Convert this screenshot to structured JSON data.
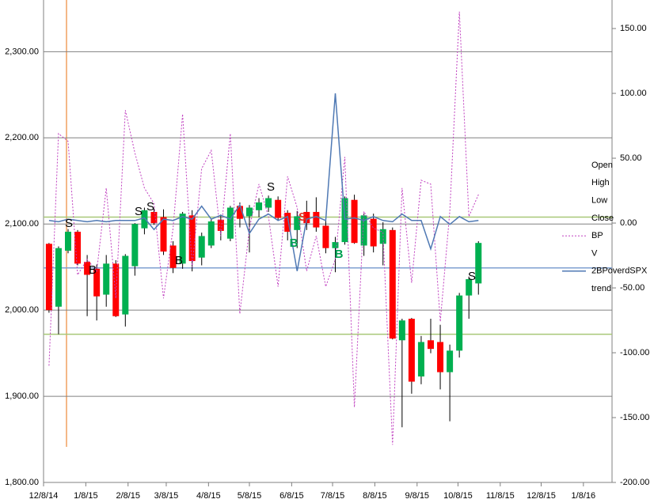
{
  "chart_data": {
    "type": "candlestick",
    "dates": [
      "12/12/14",
      "12/19/14",
      "12/26/14",
      "1/2/15",
      "1/9/15",
      "1/16/15",
      "1/23/15",
      "1/30/15",
      "2/6/15",
      "2/13/15",
      "2/20/15",
      "2/27/15",
      "3/6/15",
      "3/13/15",
      "3/20/15",
      "3/27/15",
      "4/3/15",
      "4/10/15",
      "4/17/15",
      "4/24/15",
      "5/1/15",
      "5/8/15",
      "5/15/15",
      "5/22/15",
      "5/29/15",
      "6/5/15",
      "6/12/15",
      "6/19/15",
      "6/26/15",
      "7/3/15",
      "7/10/15",
      "7/17/15",
      "7/24/15",
      "7/31/15",
      "8/7/15",
      "8/14/15",
      "8/21/15",
      "8/28/15",
      "9/4/15",
      "9/11/15",
      "9/18/15",
      "9/25/15",
      "10/2/15",
      "10/9/15",
      "10/16/15",
      "10/23/15"
    ],
    "open": [
      2077,
      2004,
      2069,
      2091,
      2056,
      2048,
      2018,
      2054,
      1995,
      2051,
      2095,
      2114,
      2108,
      2075,
      2054,
      2110,
      2061,
      2075,
      2105,
      2083,
      2121,
      2109,
      2116,
      2119,
      2128,
      2113,
      2093,
      2114,
      2114,
      2098,
      2072,
      2079,
      2128,
      2075,
      2106,
      2077,
      2093,
      1965,
      1990,
      1923,
      1965,
      1963,
      1928,
      1953,
      2017,
      2031
    ],
    "high": [
      2078,
      2074,
      2094,
      2093,
      2064,
      2053,
      2064,
      2058,
      2065,
      2101,
      2119,
      2118,
      2117,
      2080,
      2114,
      2116,
      2090,
      2106,
      2111,
      2121,
      2125,
      2122,
      2130,
      2133,
      2132,
      2116,
      2115,
      2127,
      2131,
      2105,
      2085,
      2132,
      2134,
      2112,
      2112,
      2102,
      2096,
      1990,
      1991,
      1970,
      1990,
      1983,
      1960,
      2020,
      2039,
      2080
    ],
    "low": [
      1997,
      1972,
      2066,
      2052,
      1993,
      1988,
      2004,
      1992,
      1981,
      2040,
      2088,
      2099,
      2064,
      2043,
      2048,
      2045,
      2052,
      2072,
      2081,
      2080,
      2096,
      2067,
      2108,
      2114,
      2104,
      2081,
      2072,
      2093,
      2091,
      2066,
      2044,
      2076,
      2077,
      2063,
      2067,
      2052,
      1966,
      1864,
      1903,
      1914,
      1950,
      1908,
      1871,
      1945,
      1990,
      2018
    ],
    "close": [
      2000,
      2072,
      2091,
      2054,
      2041,
      2016,
      2054,
      1993,
      2063,
      2100,
      2116,
      2101,
      2068,
      2049,
      2112,
      2057,
      2086,
      2103,
      2092,
      2119,
      2106,
      2119,
      2125,
      2130,
      2107,
      2091,
      2109,
      2101,
      2096,
      2072,
      2079,
      2130,
      2078,
      2110,
      2074,
      2094,
      1967,
      1988,
      1917,
      1963,
      1955,
      1928,
      1953,
      2017,
      2036,
      2078
    ],
    "up_color": "#00b050",
    "down_color": "#ff0000",
    "series": [
      {
        "name": "BP",
        "color": "#c040c0",
        "axis": "y2",
        "style": "dotted",
        "values": [
          -110,
          69,
          63,
          -40,
          -28,
          -37,
          27,
          -58,
          87,
          54,
          27,
          15,
          -58,
          -4,
          84,
          -34,
          42,
          56,
          -10,
          69,
          -70,
          -4,
          30,
          5,
          -49,
          36,
          12,
          -37,
          -10,
          -49,
          -28,
          51,
          -142,
          9,
          -4,
          -7,
          -171,
          27,
          -46,
          33,
          30,
          -76,
          9,
          163,
          5,
          22
        ]
      },
      {
        "name": "2BPoverdSPX",
        "color": "#4f79b4",
        "axis": "y2",
        "style": "solid",
        "values": [
          2,
          1,
          3,
          2,
          1,
          2,
          1,
          2,
          2,
          2,
          4,
          -5,
          3,
          2,
          5,
          3,
          13,
          3,
          6,
          3,
          14,
          -8,
          3,
          7,
          2,
          5,
          -37,
          3,
          5,
          2,
          100,
          3,
          4,
          2,
          5,
          2,
          1,
          7,
          2,
          2,
          -20,
          5,
          -1,
          5,
          1,
          2
        ]
      }
    ],
    "legend": [
      "Open",
      "High",
      "Low",
      "Close",
      "BP",
      "V",
      "2BPoverdSPX",
      "trend"
    ],
    "hlines": [
      {
        "value": 2108,
        "color": "#a8c878"
      },
      {
        "value": 1972,
        "color": "#a8c878"
      },
      {
        "value": 2049,
        "color": "#7fa0d0"
      }
    ],
    "annotations": [
      {
        "text": "S",
        "color": "#000000"
      },
      {
        "text": "B",
        "color": "#000000"
      },
      {
        "text": "S",
        "color": "#000000"
      },
      {
        "text": "S",
        "color": "#000000"
      },
      {
        "text": "B",
        "color": "#000000"
      },
      {
        "text": "S",
        "color": "#000000"
      },
      {
        "text": "B",
        "color": "#00a050"
      },
      {
        "text": "S",
        "color": "#e03020"
      },
      {
        "text": "B",
        "color": "#00a050"
      },
      {
        "text": "S",
        "color": "#000000"
      }
    ],
    "xlim": [
      "12/8/14",
      "1/29/16"
    ],
    "xticks": [
      "12/8/14",
      "1/8/15",
      "2/8/15",
      "3/8/15",
      "4/8/15",
      "5/8/15",
      "6/8/15",
      "7/8/15",
      "8/8/15",
      "9/8/15",
      "10/8/15",
      "11/8/15",
      "12/8/15",
      "1/8/16"
    ],
    "ylim": [
      1800,
      2360
    ],
    "yticks": [
      {
        "value": 1800,
        "label": "1,800.00"
      },
      {
        "value": 1900,
        "label": "1,900.00"
      },
      {
        "value": 2000,
        "label": "2,000.00"
      },
      {
        "value": 2100,
        "label": "2,100.00"
      },
      {
        "value": 2200,
        "label": "2,200.00"
      },
      {
        "value": 2300,
        "label": "2,300.00"
      }
    ],
    "y2lim": [
      -200,
      172
    ],
    "y2ticks": [
      {
        "value": 150,
        "label": "150.00"
      },
      {
        "value": 100,
        "label": "100.00"
      },
      {
        "value": 50,
        "label": "50.00"
      },
      {
        "value": 0,
        "label": "0.00"
      },
      {
        "value": -50,
        "label": "-50.00"
      },
      {
        "value": -100,
        "label": "-100.00"
      },
      {
        "value": -150,
        "label": "-150.00"
      },
      {
        "value": -200,
        "label": "-200.00"
      }
    ],
    "grid": true
  }
}
